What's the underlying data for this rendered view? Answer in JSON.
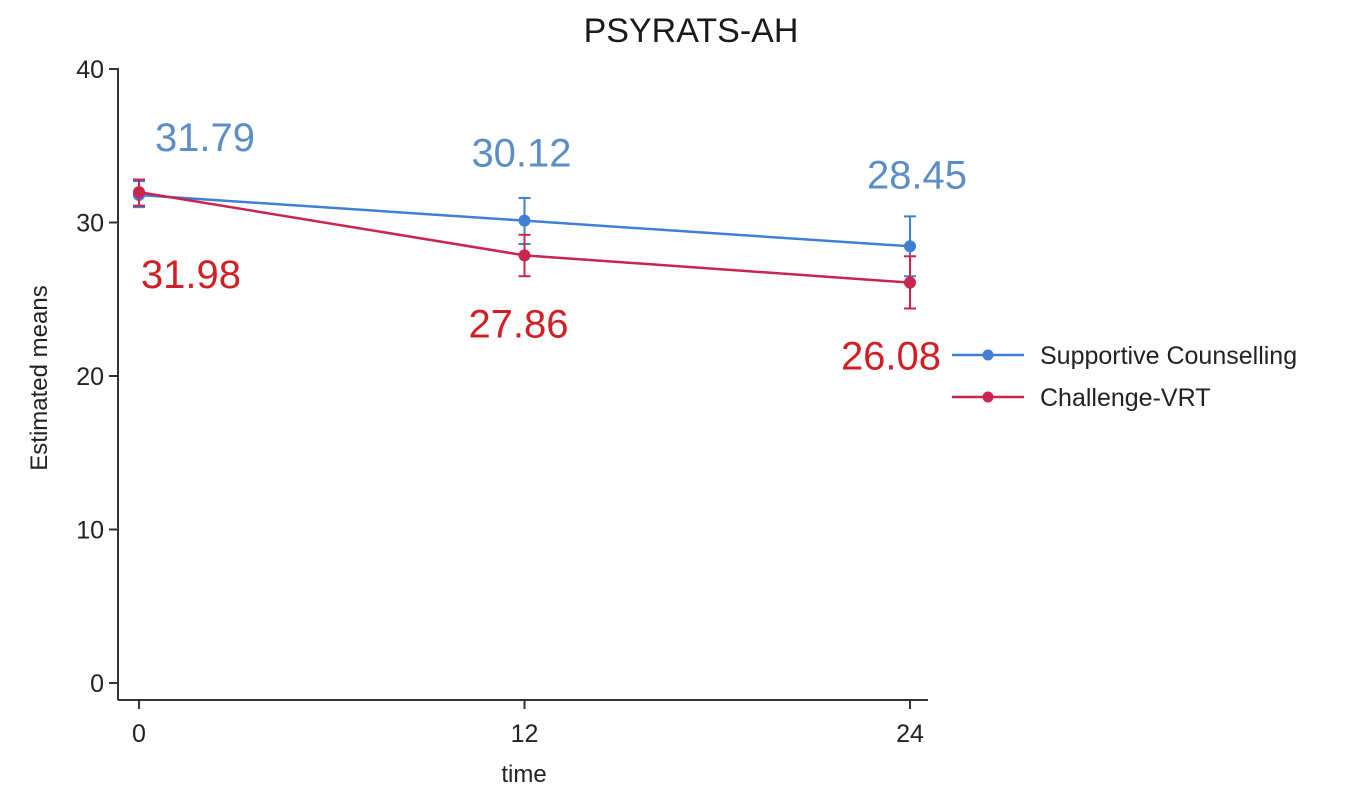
{
  "chart_data": {
    "type": "line",
    "title": "PSYRATS-AH",
    "xlabel": "time",
    "ylabel": "Estimated means",
    "x": [
      0,
      12,
      24
    ],
    "xticks": [
      "0",
      "12",
      "24"
    ],
    "yticks": [
      "0",
      "10",
      "20",
      "30",
      "40"
    ],
    "xlim": [
      -1,
      25
    ],
    "ylim": [
      0,
      40
    ],
    "grid": false,
    "legend_position": "right",
    "series": [
      {
        "name": "Supportive Counselling",
        "color": "#3f7fd6",
        "label_color": "#5b8ec4",
        "values": [
          31.79,
          30.12,
          28.45
        ],
        "labels": [
          "31.79",
          "30.12",
          "28.45"
        ],
        "ci_low": [
          31.0,
          28.6,
          26.5
        ],
        "ci_high": [
          32.7,
          31.6,
          30.4
        ]
      },
      {
        "name": "Challenge-VRT",
        "color": "#c8254f",
        "label_color": "#d11f26",
        "values": [
          31.98,
          27.86,
          26.08
        ],
        "labels": [
          "31.98",
          "27.86",
          "26.08"
        ],
        "ci_low": [
          31.1,
          26.5,
          24.4
        ],
        "ci_high": [
          32.8,
          29.2,
          27.8
        ]
      }
    ]
  }
}
